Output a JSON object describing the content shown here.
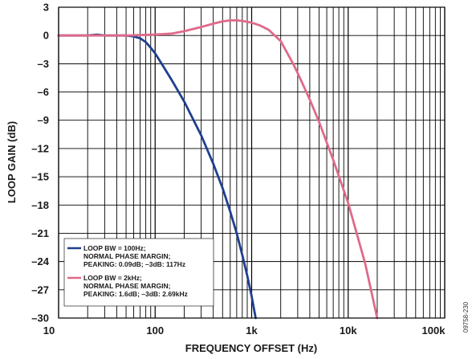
{
  "chart_data": {
    "type": "line",
    "xlabel": "FREQUENCY OFFSET (Hz)",
    "ylabel": "LOOP GAIN (dB)",
    "x_scale": "log",
    "xlim": [
      10,
      100000
    ],
    "ylim": [
      -30,
      3
    ],
    "x_ticks": [
      10,
      100,
      1000,
      10000,
      100000
    ],
    "x_tick_labels": [
      "10",
      "100",
      "1k",
      "10k",
      "100k"
    ],
    "y_ticks": [
      3,
      0,
      -3,
      -6,
      -9,
      -12,
      -15,
      -18,
      -21,
      -24,
      -27,
      -30
    ],
    "y_tick_labels": [
      "3",
      "0",
      "–3",
      "–6",
      "–9",
      "–12",
      "–15",
      "–18",
      "–21",
      "–24",
      "–27",
      "–30"
    ],
    "grid": true,
    "legend_position": "bottom-left",
    "figure_id": "09758-230",
    "series": [
      {
        "legend_lines": [
          "LOOP BW = 100Hz;",
          "NORMAL PHASE MARGIN;",
          "PEAKING: 0.09dB; –3dB: 117Hz"
        ],
        "color": "#1f3f8f",
        "x": [
          10,
          20,
          25,
          30,
          40,
          50,
          60,
          70,
          80,
          90,
          100,
          117,
          150,
          200,
          300,
          400,
          500,
          600,
          700,
          800,
          900,
          1000,
          1100
        ],
        "y": [
          0,
          0,
          0.09,
          0,
          0,
          0,
          -0.1,
          -0.3,
          -0.7,
          -1.3,
          -1.9,
          -3,
          -4.8,
          -7,
          -10.6,
          -13.6,
          -16.2,
          -18.7,
          -21,
          -23.3,
          -25.5,
          -27.7,
          -30
        ]
      },
      {
        "legend_lines": [
          "LOOP BW = 2kHz;",
          "NORMAL PHASE MARGIN;",
          "PEAKING: 1.6dB; –3dB: 2.69kHz"
        ],
        "color": "#e06a8a",
        "x": [
          10,
          50,
          100,
          150,
          200,
          300,
          400,
          500,
          600,
          700,
          800,
          1000,
          1200,
          1500,
          2000,
          2690,
          3000,
          4000,
          5000,
          7000,
          10000,
          15000,
          20000
        ],
        "y": [
          0,
          0,
          0.1,
          0.2,
          0.45,
          0.9,
          1.25,
          1.5,
          1.6,
          1.6,
          1.55,
          1.35,
          1.1,
          0.6,
          -0.6,
          -3,
          -4,
          -6.8,
          -9.2,
          -13.2,
          -17.8,
          -24.2,
          -30
        ]
      }
    ]
  }
}
